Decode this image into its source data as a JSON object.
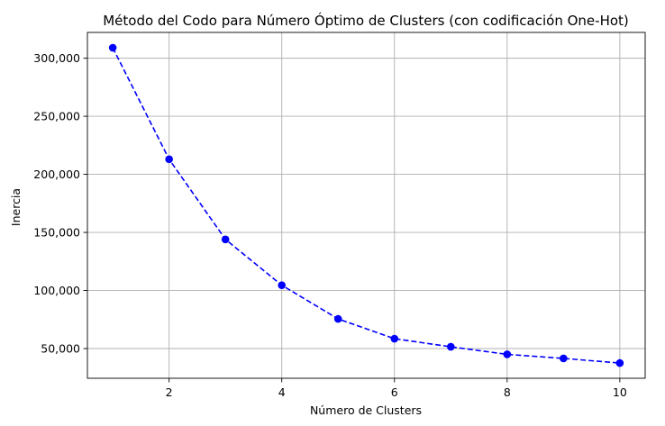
{
  "chart_data": {
    "type": "line",
    "title": "Método del Codo para Número Óptimo de Clusters (con codificación One-Hot)",
    "xlabel": "Número de Clusters",
    "ylabel": "Inercia",
    "x": [
      1,
      2,
      3,
      4,
      5,
      6,
      7,
      8,
      9,
      10
    ],
    "series": [
      {
        "values": [
          309000,
          213000,
          144000,
          104500,
          75500,
          58500,
          51500,
          45000,
          41500,
          37500
        ],
        "color": "#0000ff",
        "line_style": "dashed",
        "marker": "circle"
      }
    ],
    "xlim": [
      0.55,
      10.45
    ],
    "ylim": [
      24400,
      322200
    ],
    "xticks": [
      2,
      4,
      6,
      8,
      10
    ],
    "xtick_labels": [
      "2",
      "4",
      "6",
      "8",
      "10"
    ],
    "yticks": [
      50000,
      100000,
      150000,
      200000,
      250000,
      300000
    ],
    "ytick_labels": [
      "50,000",
      "100,000",
      "150,000",
      "200,000",
      "250,000",
      "300,000"
    ],
    "grid": true
  }
}
